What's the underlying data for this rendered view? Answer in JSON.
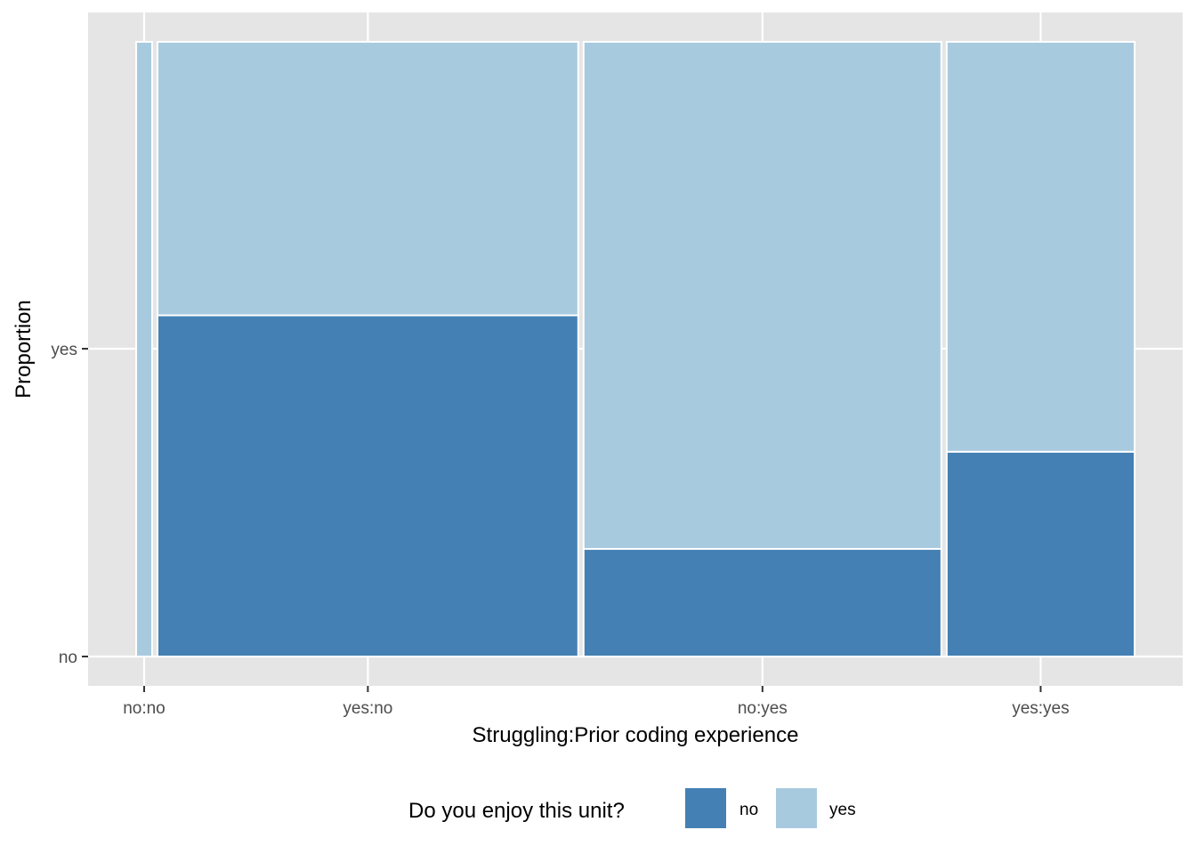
{
  "chart_data": {
    "type": "mosaic",
    "xlabel": "Struggling:Prior coding experience",
    "ylabel": "Proportion",
    "x_tick_labels": [
      "no:no",
      "yes:no",
      "no:yes",
      "yes:yes"
    ],
    "y_tick_labels": [
      "no",
      "yes"
    ],
    "legend": {
      "title": "Do you enjoy this unit?",
      "position": "bottom",
      "entries": [
        {
          "label": "no",
          "color": "#4480b3"
        },
        {
          "label": "yes",
          "color": "#a8cadf"
        }
      ]
    },
    "grid": true,
    "columns": [
      {
        "category": "no:no",
        "width_share": 0.016,
        "proportion_no": 0.0
      },
      {
        "category": "yes:no",
        "width_share": 0.421,
        "proportion_no": 0.555
      },
      {
        "category": "no:yes",
        "width_share": 0.358,
        "proportion_no": 0.175
      },
      {
        "category": "yes:yes",
        "width_share": 0.188,
        "proportion_no": 0.333
      }
    ],
    "colors": {
      "panel_background": "#e5e5e5",
      "gridline": "#ffffff",
      "tile_border": "#ffffff"
    }
  }
}
